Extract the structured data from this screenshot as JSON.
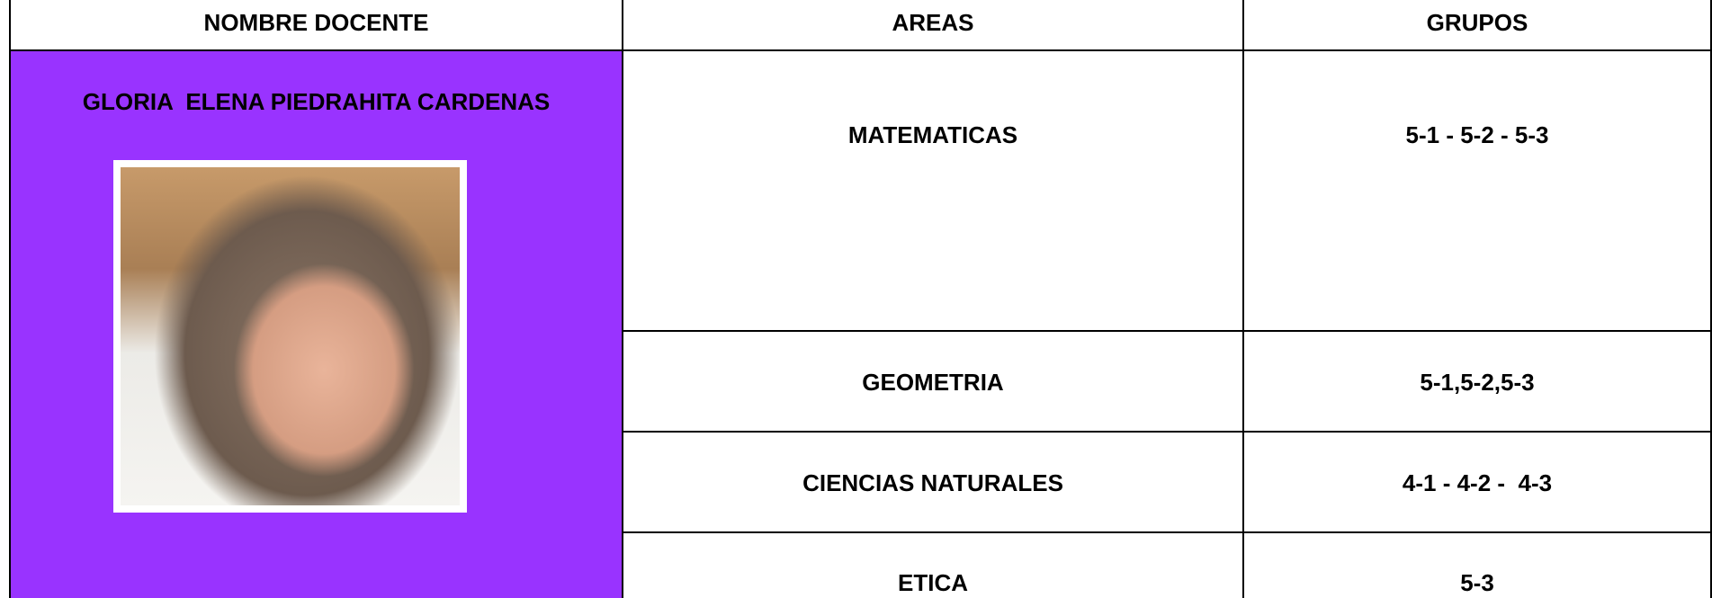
{
  "table": {
    "header": [
      "NOMBRE DOCENTE",
      "AREAS",
      "GRUPOS"
    ],
    "teacher": "GLORIA  ELENA PIEDRAHITA CARDENAS",
    "rows": [
      [
        "MATEMATICAS",
        "5-1 - 5-2 - 5-3"
      ],
      [
        "GEOMETRIA",
        "5-1,5-2,5-3"
      ],
      [
        "CIENCIAS NATURALES",
        "4-1 - 4-2 -  4-3"
      ],
      [
        "ETICA",
        "5-3"
      ]
    ]
  }
}
